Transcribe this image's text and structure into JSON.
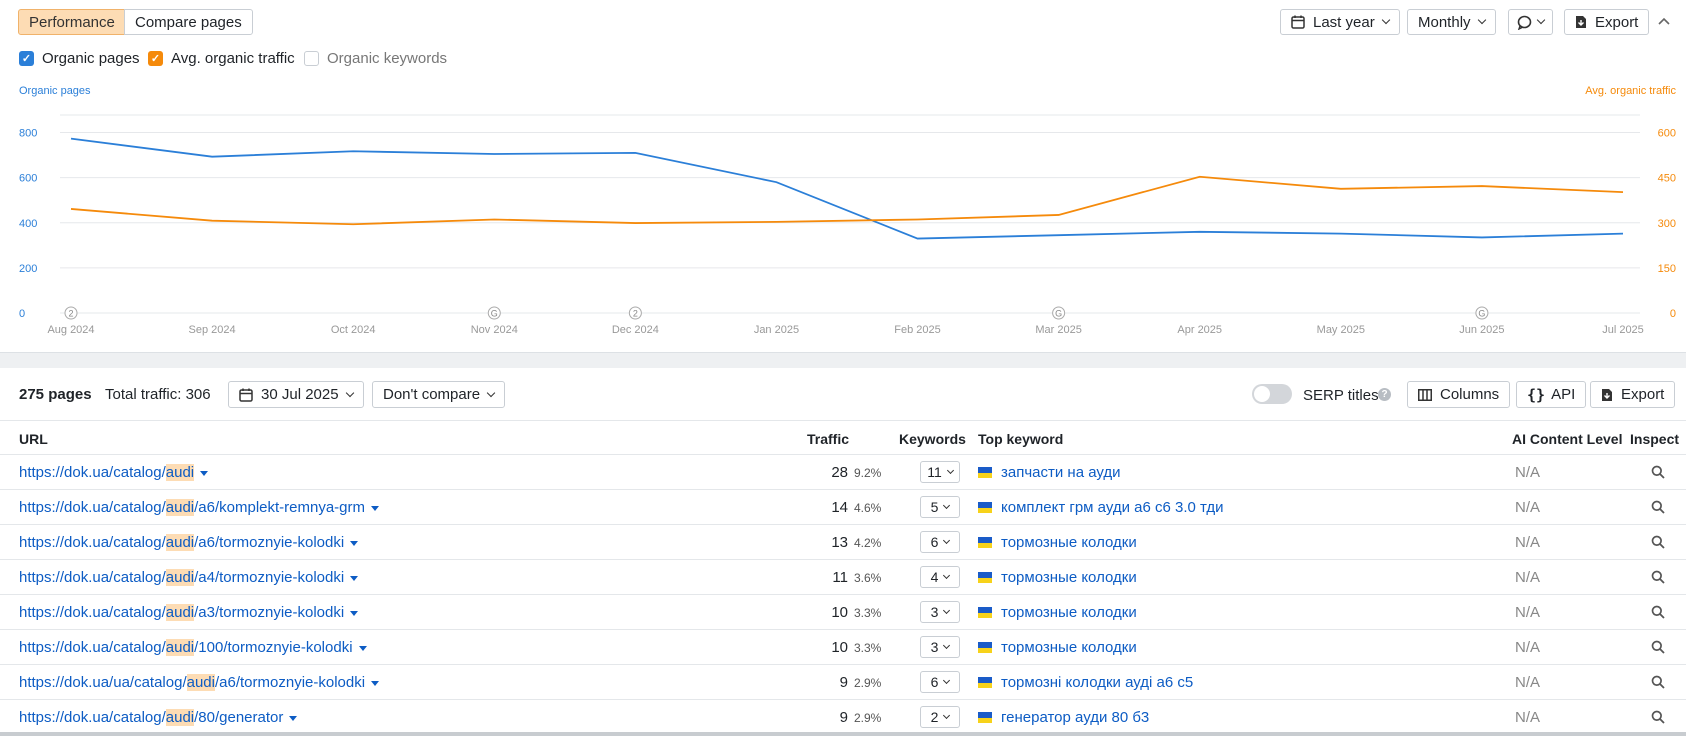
{
  "toolbar": {
    "tab_performance": "Performance",
    "tab_compare": "Compare pages",
    "date_range": "Last year",
    "interval": "Monthly",
    "export": "Export"
  },
  "legend": {
    "organic_pages": "Organic pages",
    "avg_traffic": "Avg. organic traffic",
    "organic_keywords": "Organic keywords"
  },
  "chart_data": {
    "type": "line",
    "x": [
      "Aug 2024",
      "Sep 2024",
      "Oct 2024",
      "Nov 2024",
      "Dec 2024",
      "Jan 2025",
      "Feb 2025",
      "Mar 2025",
      "Apr 2025",
      "May 2025",
      "Jun 2025",
      "Jul 2025"
    ],
    "left_axis_label": "Organic pages",
    "right_axis_label": "Avg. organic traffic",
    "left_ticks": [
      "0",
      "200",
      "400",
      "600",
      "800"
    ],
    "right_ticks": [
      "0",
      "150",
      "300",
      "450",
      "600"
    ],
    "left_ylim": [
      0,
      900
    ],
    "right_ylim": [
      0,
      675
    ],
    "series": [
      {
        "name": "Organic pages",
        "axis": "left",
        "color": "#2b7fd8",
        "values": [
          773,
          693,
          717,
          705,
          710,
          580,
          330,
          345,
          360,
          352,
          335,
          352
        ]
      },
      {
        "name": "Avg. organic traffic",
        "axis": "right",
        "color": "#f58a0b",
        "values": [
          346,
          307,
          295,
          311,
          299,
          303,
          311,
          326,
          453,
          413,
          422,
          402
        ]
      }
    ],
    "annotations": [
      {
        "x": "Aug 2024",
        "label": "2"
      },
      {
        "x": "Nov 2024",
        "label": "G"
      },
      {
        "x": "Dec 2024",
        "label": "2"
      },
      {
        "x": "Mar 2025",
        "label": "G"
      },
      {
        "x": "Jun 2025",
        "label": "G"
      }
    ]
  },
  "table_bar": {
    "pages": "275 pages",
    "total_traffic": "Total traffic: 306",
    "date": "30 Jul 2025",
    "compare": "Don't compare",
    "serp_titles": "SERP titles",
    "columns": "Columns",
    "api": "API",
    "export": "Export"
  },
  "columns": {
    "url": "URL",
    "traffic": "Traffic",
    "keywords": "Keywords",
    "top_keyword": "Top keyword",
    "ai": "AI Content Level",
    "inspect": "Inspect"
  },
  "rows": [
    {
      "url_pre": "https://dok.ua/catalog/",
      "url_hl": "audi",
      "url_post": "",
      "traffic": "28",
      "pct": "9.2%",
      "kw": "11",
      "top": "запчасти на ауди",
      "ai": "N/A"
    },
    {
      "url_pre": "https://dok.ua/catalog/",
      "url_hl": "audi",
      "url_post": "/a6/komplekt-remnya-grm",
      "traffic": "14",
      "pct": "4.6%",
      "kw": "5",
      "top": "комплект грм ауди а6 с6 3.0 тди",
      "ai": "N/A"
    },
    {
      "url_pre": "https://dok.ua/catalog/",
      "url_hl": "audi",
      "url_post": "/a6/tormoznyie-kolodki",
      "traffic": "13",
      "pct": "4.2%",
      "kw": "6",
      "top": "тормозные колодки",
      "ai": "N/A"
    },
    {
      "url_pre": "https://dok.ua/catalog/",
      "url_hl": "audi",
      "url_post": "/a4/tormoznyie-kolodki",
      "traffic": "11",
      "pct": "3.6%",
      "kw": "4",
      "top": "тормозные колодки",
      "ai": "N/A"
    },
    {
      "url_pre": "https://dok.ua/catalog/",
      "url_hl": "audi",
      "url_post": "/a3/tormoznyie-kolodki",
      "traffic": "10",
      "pct": "3.3%",
      "kw": "3",
      "top": "тормозные колодки",
      "ai": "N/A"
    },
    {
      "url_pre": "https://dok.ua/catalog/",
      "url_hl": "audi",
      "url_post": "/100/tormoznyie-kolodki",
      "traffic": "10",
      "pct": "3.3%",
      "kw": "3",
      "top": "тормозные колодки",
      "ai": "N/A"
    },
    {
      "url_pre": "https://dok.ua/ua/catalog/",
      "url_hl": "audi",
      "url_post": "/a6/tormoznyie-kolodki",
      "traffic": "9",
      "pct": "2.9%",
      "kw": "6",
      "top": "тормозні колодки ауді а6 с5",
      "ai": "N/A"
    },
    {
      "url_pre": "https://dok.ua/catalog/",
      "url_hl": "audi",
      "url_post": "/80/generator",
      "traffic": "9",
      "pct": "2.9%",
      "kw": "2",
      "top": "генератор ауди 80 б3",
      "ai": "N/A"
    }
  ]
}
